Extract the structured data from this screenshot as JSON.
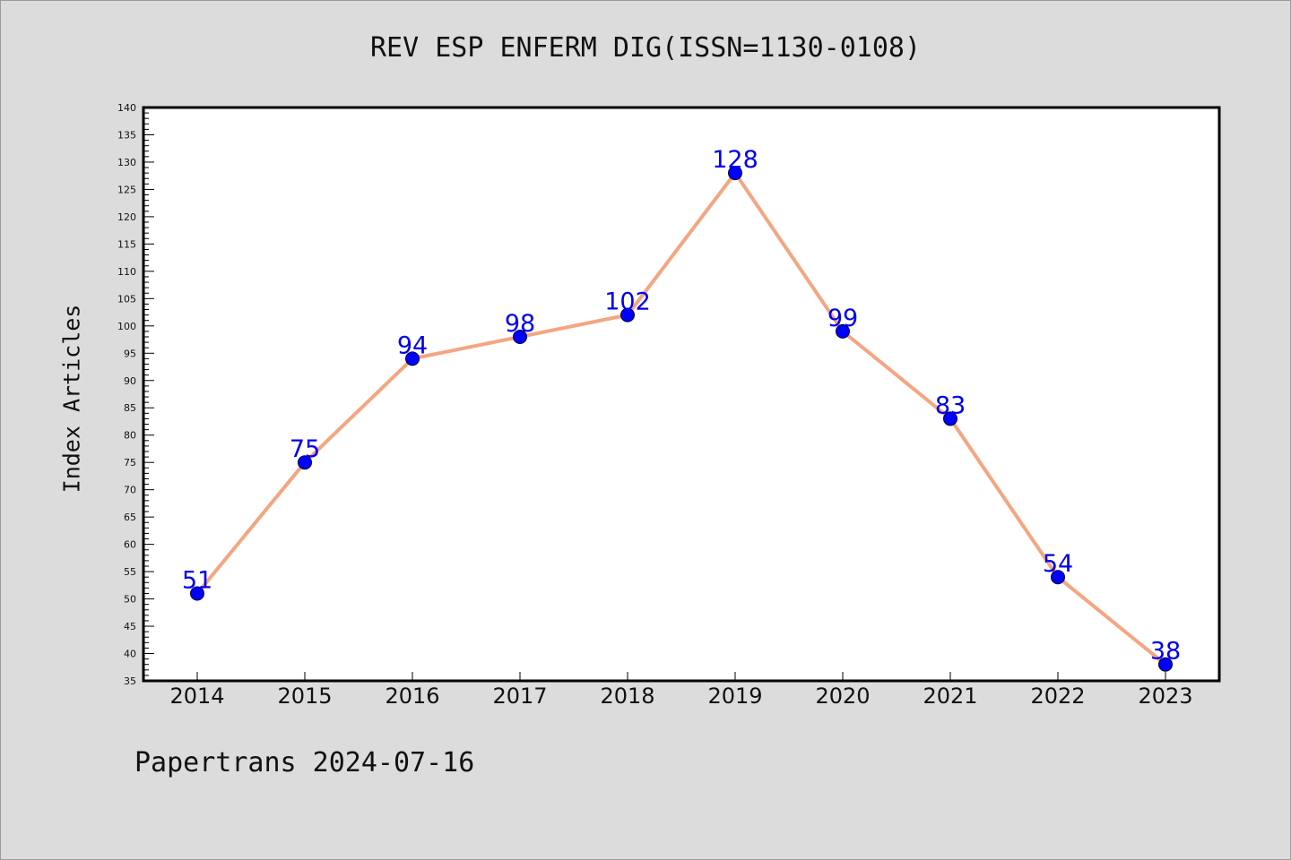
{
  "footer_text": "Papertrans 2024-07-16",
  "colors": {
    "background": "#dcdcdc",
    "plot_background": "#ffffff",
    "line": "#f4a582",
    "marker": "#0000ff",
    "data_label": "#0000ee"
  },
  "chart_data": {
    "type": "line",
    "title": "REV ESP ENFERM DIG(ISSN=1130-0108)",
    "xlabel": "",
    "ylabel": "Index Articles",
    "categories": [
      "2014",
      "2015",
      "2016",
      "2017",
      "2018",
      "2019",
      "2020",
      "2021",
      "2022",
      "2023"
    ],
    "series": [
      {
        "values": [
          51,
          75,
          94,
          98,
          102,
          128,
          99,
          83,
          54,
          38
        ]
      }
    ],
    "data_labels": [
      "51",
      "75",
      "94",
      "98",
      "102",
      "128",
      "99",
      "83",
      "54",
      "38"
    ],
    "ylim": [
      35,
      140
    ],
    "yticks": [
      35,
      40,
      45,
      50,
      55,
      60,
      65,
      70,
      75,
      80,
      85,
      90,
      95,
      100,
      105,
      110,
      115,
      120,
      125,
      130,
      135,
      140
    ],
    "grid": false,
    "legend": "none"
  }
}
